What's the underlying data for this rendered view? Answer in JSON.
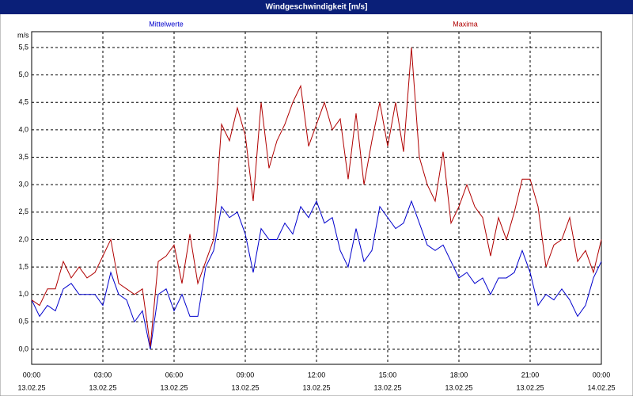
{
  "chart_data": {
    "type": "line",
    "title": "Windgeschwindigkeit [m/s]",
    "ylabel": "m/s",
    "x": [
      0,
      20,
      40,
      60,
      80,
      100,
      120,
      140,
      160,
      180,
      200,
      220,
      240,
      260,
      280,
      300,
      320,
      340,
      360,
      380,
      400,
      420,
      440,
      460,
      480,
      500,
      520,
      540,
      560,
      580,
      600,
      620,
      640,
      660,
      680,
      700,
      720,
      740,
      760,
      780,
      800,
      820,
      840,
      860,
      880,
      900,
      920,
      940,
      960,
      980,
      1000,
      1020,
      1040,
      1060,
      1080,
      1100,
      1120,
      1140,
      1160,
      1180,
      1200,
      1220,
      1240,
      1260,
      1280,
      1300,
      1320,
      1340,
      1360,
      1380,
      1400,
      1420,
      1440
    ],
    "series": [
      {
        "name": "Mittelwerte",
        "color": "#0000cc",
        "values": [
          0.9,
          0.6,
          0.8,
          0.7,
          1.1,
          1.2,
          1.0,
          1.0,
          1.0,
          0.8,
          1.4,
          1.0,
          0.9,
          0.5,
          0.7,
          0.0,
          1.0,
          1.1,
          0.7,
          1.0,
          0.6,
          0.6,
          1.5,
          1.8,
          2.6,
          2.4,
          2.5,
          2.1,
          1.4,
          2.2,
          2.0,
          2.0,
          2.3,
          2.1,
          2.6,
          2.4,
          2.7,
          2.3,
          2.4,
          1.8,
          1.5,
          2.2,
          1.6,
          1.8,
          2.6,
          2.4,
          2.2,
          2.3,
          2.7,
          2.3,
          1.9,
          1.8,
          1.9,
          1.6,
          1.3,
          1.4,
          1.2,
          1.3,
          1.0,
          1.3,
          1.3,
          1.4,
          1.8,
          1.4,
          0.8,
          1.0,
          0.9,
          1.1,
          0.9,
          0.6,
          0.8,
          1.3,
          1.6
        ]
      },
      {
        "name": "Maxima",
        "color": "#b00000",
        "values": [
          0.9,
          0.8,
          1.1,
          1.1,
          1.6,
          1.3,
          1.5,
          1.3,
          1.4,
          1.7,
          2.0,
          1.2,
          1.1,
          1.0,
          1.1,
          0.05,
          1.6,
          1.7,
          1.9,
          1.2,
          2.1,
          1.2,
          1.6,
          2.0,
          4.1,
          3.8,
          4.4,
          3.9,
          2.7,
          4.5,
          3.3,
          3.8,
          4.1,
          4.5,
          4.8,
          3.7,
          4.1,
          4.5,
          4.0,
          4.2,
          3.1,
          4.3,
          3.0,
          3.8,
          4.5,
          3.7,
          4.5,
          3.6,
          5.5,
          3.5,
          3.0,
          2.7,
          3.6,
          2.3,
          2.6,
          3.0,
          2.6,
          2.4,
          1.7,
          2.4,
          2.0,
          2.5,
          3.1,
          3.1,
          2.6,
          1.5,
          1.9,
          2.0,
          2.4,
          1.6,
          1.8,
          1.4,
          2.0
        ]
      }
    ],
    "xlim": [
      0,
      1440
    ],
    "xticks": [
      {
        "value": 0,
        "label": "00:00",
        "date": "13.02.25"
      },
      {
        "value": 180,
        "label": "03:00",
        "date": "13.02.25"
      },
      {
        "value": 360,
        "label": "06:00",
        "date": "13.02.25"
      },
      {
        "value": 540,
        "label": "09:00",
        "date": "13.02.25"
      },
      {
        "value": 720,
        "label": "12:00",
        "date": "13.02.25"
      },
      {
        "value": 900,
        "label": "15:00",
        "date": "13.02.25"
      },
      {
        "value": 1080,
        "label": "18:00",
        "date": "13.02.25"
      },
      {
        "value": 1260,
        "label": "21:00",
        "date": "13.02.25"
      },
      {
        "value": 1440,
        "label": "00:00",
        "date": "14.02.25"
      }
    ],
    "ylim": [
      0,
      5.5
    ],
    "yticks": [
      {
        "value": 0,
        "label": "0,0"
      },
      {
        "value": 0.5,
        "label": "0,5"
      },
      {
        "value": 1,
        "label": "1,0"
      },
      {
        "value": 1.5,
        "label": "1,5"
      },
      {
        "value": 2,
        "label": "2,0"
      },
      {
        "value": 2.5,
        "label": "2,5"
      },
      {
        "value": 3,
        "label": "3,0"
      },
      {
        "value": 3.5,
        "label": "3,5"
      },
      {
        "value": 4,
        "label": "4,0"
      },
      {
        "value": 4.5,
        "label": "4,5"
      },
      {
        "value": 5,
        "label": "5,0"
      },
      {
        "value": 5.5,
        "label": "5,5"
      }
    ],
    "grid": true
  }
}
